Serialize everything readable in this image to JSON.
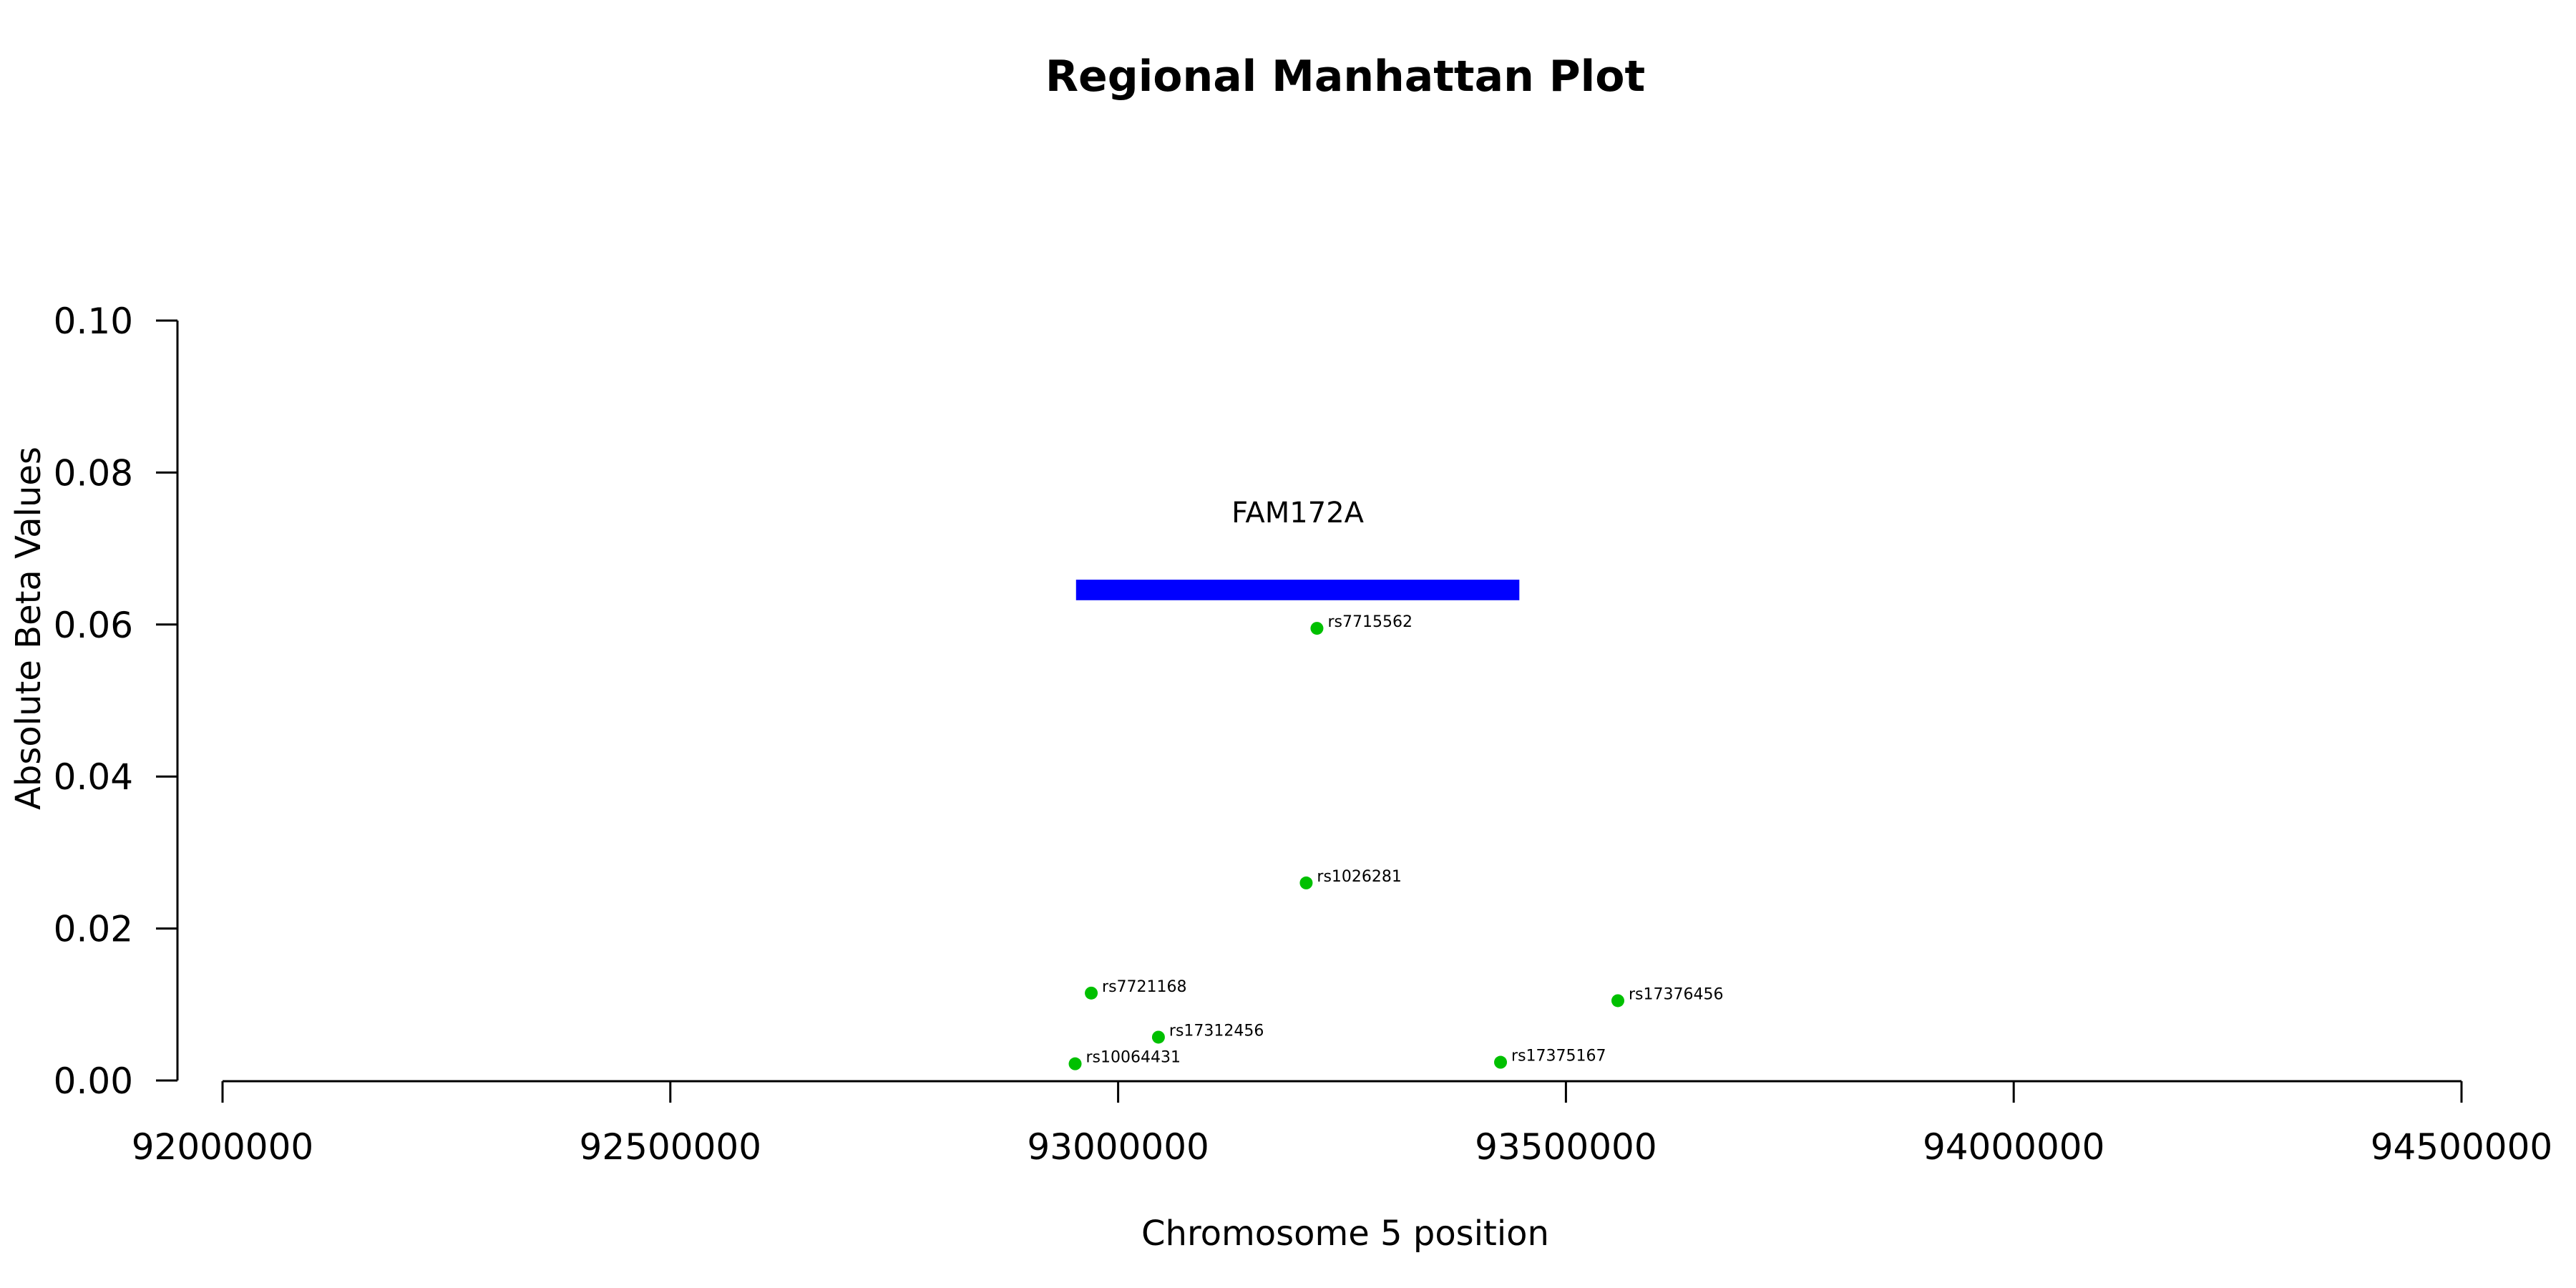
{
  "chart_data": {
    "type": "scatter",
    "title": "Regional Manhattan Plot",
    "xlabel": "Chromosome 5 position",
    "ylabel": "Absolute Beta Values",
    "xlim": [
      92000000,
      94500000
    ],
    "ylim": [
      0,
      0.1
    ],
    "x_ticks": [
      92000000,
      92500000,
      93000000,
      93500000,
      94000000,
      94500000
    ],
    "x_tick_labels": [
      "92000000",
      "92500000",
      "93000000",
      "93500000",
      "94000000",
      "94500000"
    ],
    "y_ticks": [
      0,
      0.02,
      0.04,
      0.06,
      0.08,
      0.1
    ],
    "y_tick_labels": [
      "0.00",
      "0.02",
      "0.04",
      "0.06",
      "0.08",
      "0.10"
    ],
    "grid": false,
    "gene": {
      "name": "FAM172A",
      "start": 92953000,
      "end": 93448000,
      "y_low": 0.0632,
      "y_high": 0.0659,
      "color": "#0000ff"
    },
    "point_color": "#00c000",
    "points": [
      {
        "label": "rs7715562",
        "x": 93222000,
        "y": 0.0595
      },
      {
        "label": "rs1026281",
        "x": 93210000,
        "y": 0.026
      },
      {
        "label": "rs7721168",
        "x": 92970000,
        "y": 0.0115
      },
      {
        "label": "rs17376456",
        "x": 93558000,
        "y": 0.0105
      },
      {
        "label": "rs17312456",
        "x": 93045000,
        "y": 0.0057
      },
      {
        "label": "rs10064431",
        "x": 92952000,
        "y": 0.0022
      },
      {
        "label": "rs17375167",
        "x": 93427000,
        "y": 0.0024
      }
    ]
  }
}
